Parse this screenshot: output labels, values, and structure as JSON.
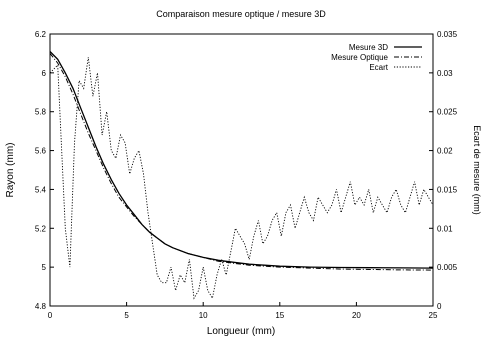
{
  "chart_data": {
    "type": "line",
    "title": "Comparaison mesure optique / mesure 3D",
    "xlabel": "Longueur (mm)",
    "ylabel": "Rayon (mm)",
    "y2label": "Ecart de mesure (mm)",
    "xlim": [
      0,
      25
    ],
    "ylim": [
      4.8,
      6.2
    ],
    "y2lim": [
      0,
      0.035
    ],
    "xticks": [
      "0",
      "5",
      "10",
      "15",
      "20",
      "25"
    ],
    "yticks": [
      "4.8",
      "5",
      "5.2",
      "5.4",
      "5.6",
      "5.8",
      "6",
      "6.2"
    ],
    "y2ticks": [
      "0",
      "0.005",
      "0.01",
      "0.015",
      "0.02",
      "0.025",
      "0.03",
      "0.035"
    ],
    "grid": false,
    "legend_position": "top-right",
    "series": [
      {
        "name": "Mesure 3D",
        "axis": "left",
        "style": "solid",
        "x": [
          0,
          0.5,
          1,
          1.5,
          2,
          2.5,
          3,
          3.5,
          4,
          4.5,
          5,
          5.5,
          6,
          6.5,
          7,
          7.5,
          8,
          9,
          10,
          11,
          12,
          13,
          14,
          15,
          17,
          19,
          21,
          23,
          25
        ],
        "y": [
          6.11,
          6.07,
          6.0,
          5.92,
          5.82,
          5.72,
          5.62,
          5.53,
          5.45,
          5.38,
          5.32,
          5.27,
          5.22,
          5.18,
          5.15,
          5.12,
          5.1,
          5.07,
          5.05,
          5.035,
          5.025,
          5.015,
          5.01,
          5.005,
          5.0,
          4.998,
          4.997,
          4.996,
          4.995
        ]
      },
      {
        "name": "Mesure Optique",
        "axis": "left",
        "style": "dash-dot",
        "x": [
          0,
          0.5,
          1,
          1.5,
          2,
          2.5,
          3,
          3.5,
          4,
          4.5,
          5,
          5.5,
          6,
          6.5,
          7,
          7.5,
          8,
          9,
          10,
          11,
          12,
          13,
          14,
          15,
          17,
          19,
          21,
          23,
          25
        ],
        "y": [
          6.1,
          6.05,
          5.98,
          5.89,
          5.79,
          5.69,
          5.6,
          5.51,
          5.43,
          5.36,
          5.31,
          5.26,
          5.22,
          5.18,
          5.15,
          5.12,
          5.1,
          5.07,
          5.05,
          5.03,
          5.02,
          5.01,
          5.005,
          5.0,
          4.995,
          4.99,
          4.988,
          4.986,
          4.985
        ]
      },
      {
        "name": "Ecart",
        "axis": "right",
        "style": "dotted",
        "x": [
          0,
          0.5,
          1.0,
          1.3,
          1.6,
          1.9,
          2.2,
          2.5,
          2.8,
          3.1,
          3.4,
          3.7,
          4.0,
          4.3,
          4.6,
          4.9,
          5.2,
          5.5,
          5.8,
          6.1,
          6.4,
          6.7,
          7.0,
          7.3,
          7.6,
          7.9,
          8.2,
          8.5,
          8.8,
          9.1,
          9.4,
          9.7,
          10.0,
          10.3,
          10.6,
          10.9,
          11.2,
          11.5,
          11.8,
          12.1,
          12.4,
          12.7,
          13.0,
          13.3,
          13.6,
          13.9,
          14.2,
          14.5,
          14.8,
          15.1,
          15.4,
          15.7,
          16.0,
          16.3,
          16.6,
          16.9,
          17.2,
          17.5,
          17.8,
          18.1,
          18.4,
          18.7,
          19.0,
          19.3,
          19.6,
          19.9,
          20.2,
          20.5,
          20.8,
          21.1,
          21.4,
          21.7,
          22.0,
          22.3,
          22.6,
          22.9,
          23.2,
          23.5,
          23.8,
          24.1,
          24.4,
          24.7,
          25.0
        ],
        "y": [
          0.03,
          0.031,
          0.01,
          0.005,
          0.021,
          0.029,
          0.028,
          0.032,
          0.027,
          0.03,
          0.022,
          0.025,
          0.02,
          0.019,
          0.022,
          0.021,
          0.017,
          0.019,
          0.02,
          0.017,
          0.012,
          0.008,
          0.004,
          0.003,
          0.003,
          0.005,
          0.002,
          0.004,
          0.003,
          0.006,
          0.001,
          0.002,
          0.005,
          0.002,
          0.001,
          0.004,
          0.006,
          0.004,
          0.007,
          0.01,
          0.009,
          0.008,
          0.006,
          0.009,
          0.011,
          0.008,
          0.009,
          0.011,
          0.012,
          0.009,
          0.012,
          0.013,
          0.01,
          0.012,
          0.014,
          0.012,
          0.011,
          0.014,
          0.013,
          0.012,
          0.013,
          0.015,
          0.012,
          0.014,
          0.016,
          0.013,
          0.014,
          0.013,
          0.015,
          0.012,
          0.014,
          0.013,
          0.012,
          0.014,
          0.015,
          0.013,
          0.012,
          0.014,
          0.016,
          0.013,
          0.015,
          0.014,
          0.013
        ]
      }
    ]
  }
}
